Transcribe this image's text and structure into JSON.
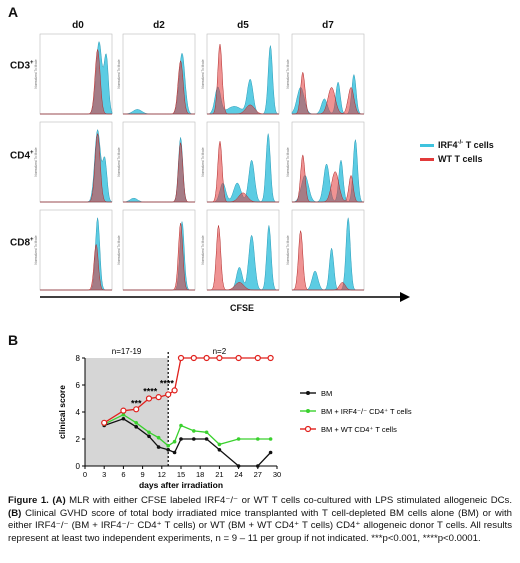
{
  "panel_a": {
    "letter": "A",
    "columns": [
      "d0",
      "d2",
      "d5",
      "d7"
    ],
    "rows": [
      {
        "label": "CD3",
        "sup": "+"
      },
      {
        "label": "CD4",
        "sup": "+"
      },
      {
        "label": "CD8",
        "sup": "+"
      }
    ],
    "histogram_ylabel": "Normalized To Mode",
    "xaxis_label": "CFSE",
    "legend": [
      {
        "label": "IRF4",
        "sup": "-/-",
        "suffix": " T cells",
        "color": "#3fc3de"
      },
      {
        "label": "WT T cells",
        "sup": "",
        "suffix": "",
        "color": "#e23a3a"
      }
    ]
  },
  "panel_b": {
    "letter": "B",
    "ylabel": "clinical score",
    "xlabel": "days after irradiation",
    "annotation_left": "n=17-19",
    "annotation_right": "n=2",
    "significance": [
      {
        "text": "***",
        "x": 8,
        "y": 4.4
      },
      {
        "text": "****",
        "x": 10.2,
        "y": 5.3
      },
      {
        "text": "****",
        "x": 12.8,
        "y": 5.9
      }
    ],
    "legend": [
      {
        "text": "BM",
        "color": "#111111"
      },
      {
        "text": "BM + IRF4⁻/⁻ CD4⁺ T cells",
        "color": "#3ad12e"
      },
      {
        "text": "BM + WT CD4⁺ T cells",
        "color": "#e0201c"
      }
    ]
  },
  "caption": {
    "title": "Figure 1.",
    "label_a": "(A)",
    "text_a": " MLR with either CFSE labeled IRF4⁻/⁻ or WT T cells co-cultured with LPS stimulated allogeneic DCs.",
    "label_b": "(B)",
    "text_b": " Clinical GVHD score of total body irradiated mice transplanted with T cell-depleted BM cells alone (BM) or with either IRF4⁻/⁻ (BM + IRF4⁻/⁻ CD4⁺ T cells) or WT (BM + WT CD4⁺ T cells) CD4⁺ allogeneic donor T cells. All results represent at least two independent experiments, n = 9 – 11 per group if not indicated. ***p<0.001, ****p<0.0001."
  },
  "chart_data": {
    "type": "line",
    "xlabel": "days after irradiation",
    "ylabel": "clinical score",
    "xlim": [
      0,
      30
    ],
    "ylim": [
      0,
      8
    ],
    "xticks": [
      0,
      3,
      6,
      9,
      12,
      15,
      18,
      21,
      24,
      27,
      30
    ],
    "xtick_labels": [
      "0",
      "3",
      "6",
      "9",
      "12",
      "15",
      "18",
      "21",
      "24",
      "27",
      "30"
    ],
    "yticks": [
      0,
      2,
      4,
      6,
      8
    ],
    "shaded_region": [
      0,
      13
    ],
    "divider_x": 13,
    "series": [
      {
        "name": "BM",
        "color": "#111111",
        "marker": "dot",
        "x": [
          3,
          6,
          8,
          10,
          11.5,
          13,
          14,
          15,
          17,
          19,
          21,
          24,
          27,
          29
        ],
        "y": [
          3.0,
          3.5,
          2.9,
          2.2,
          1.4,
          1.2,
          1.0,
          2.0,
          2.0,
          2.0,
          1.2,
          0.0,
          0.0,
          1.0
        ]
      },
      {
        "name": "BM + IRF4⁻/⁻ CD4⁺ T cells",
        "color": "#3ad12e",
        "marker": "dot",
        "x": [
          3,
          6,
          8,
          10,
          11.5,
          13,
          14,
          15,
          17,
          19,
          21,
          24,
          27,
          29
        ],
        "y": [
          3.1,
          3.8,
          3.2,
          2.5,
          2.1,
          1.5,
          1.8,
          3.0,
          2.6,
          2.5,
          1.6,
          2.0,
          2.0,
          2.0
        ]
      },
      {
        "name": "BM + WT CD4⁺ T cells",
        "color": "#e0201c",
        "marker": "circle",
        "x": [
          3,
          6,
          8,
          10,
          11.5,
          13,
          14,
          15,
          17,
          19,
          21,
          24,
          27,
          29
        ],
        "y": [
          3.2,
          4.1,
          4.2,
          5.0,
          5.1,
          5.3,
          5.6,
          8.0,
          8.0,
          8.0,
          8.0,
          8.0,
          8.0,
          8.0
        ]
      }
    ]
  }
}
